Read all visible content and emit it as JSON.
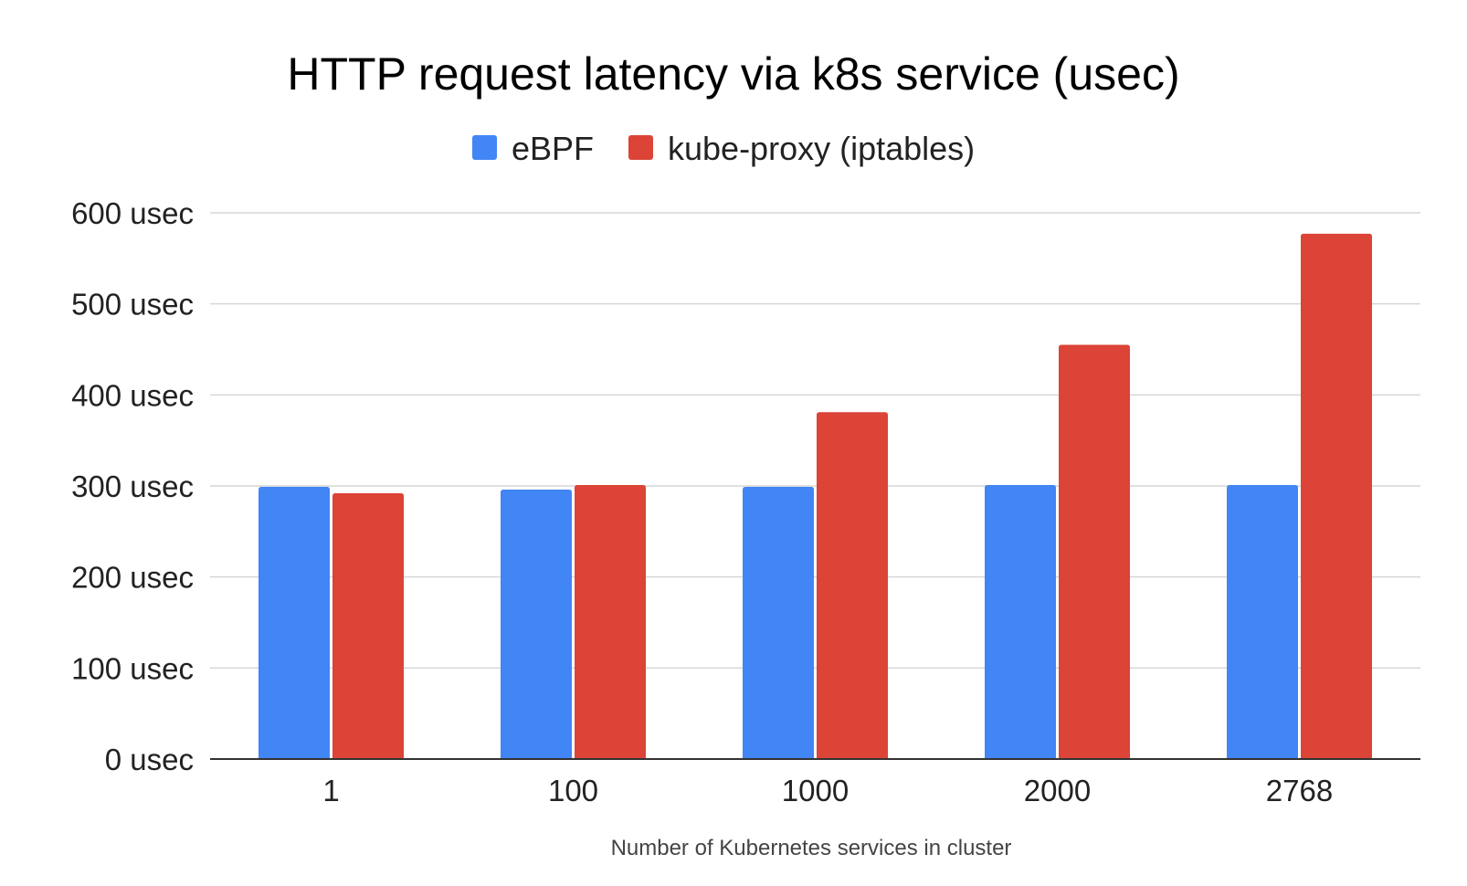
{
  "chart_data": {
    "type": "bar",
    "title": "HTTP request latency via k8s service (usec)",
    "xlabel": "Number of Kubernetes services in cluster",
    "ylabel": "",
    "categories": [
      "1",
      "100",
      "1000",
      "2000",
      "2768"
    ],
    "series": [
      {
        "name": "eBPF",
        "color": "#4285F4",
        "values": [
          299,
          296,
          299,
          301,
          301
        ]
      },
      {
        "name": "kube-proxy (iptables)",
        "color": "#DB4437",
        "values": [
          292,
          301,
          381,
          455,
          577
        ]
      }
    ],
    "ylim": [
      0,
      600
    ],
    "yticks": [
      0,
      100,
      200,
      300,
      400,
      500,
      600
    ],
    "ytick_labels": [
      "0 usec",
      "100 usec",
      "200 usec",
      "300 usec",
      "400 usec",
      "500 usec",
      "600 usec"
    ],
    "grid": true,
    "legend_position": "top"
  }
}
